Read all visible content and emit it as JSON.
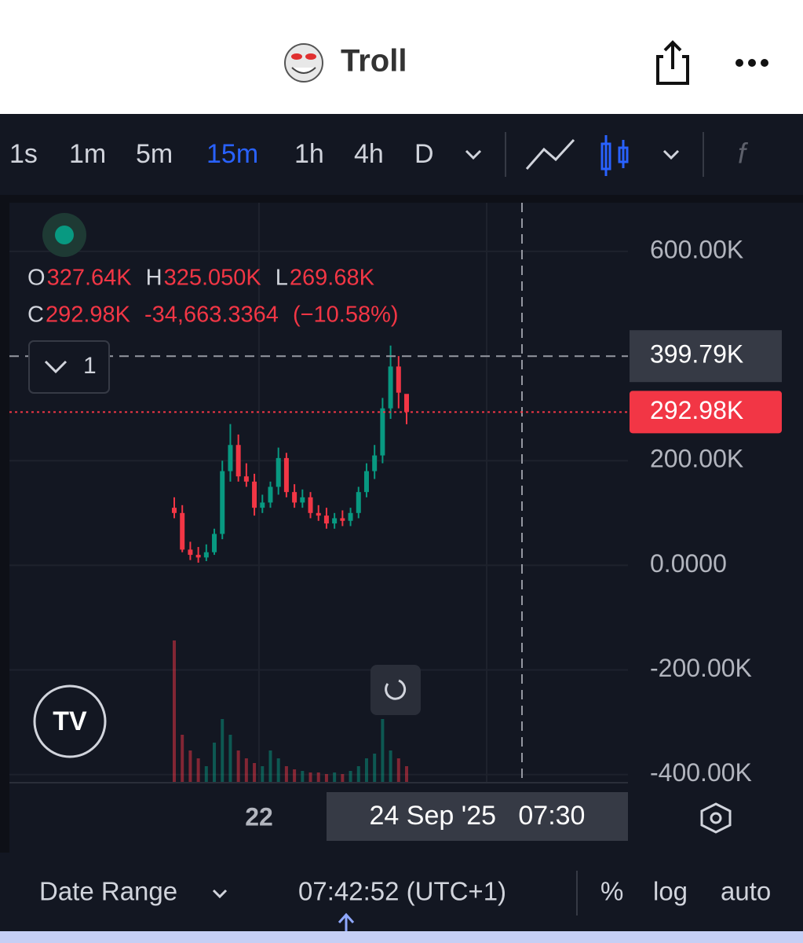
{
  "header": {
    "title": "Troll"
  },
  "toolbar": {
    "intervals": [
      "1s",
      "1m",
      "5m",
      "15m",
      "1h",
      "4h",
      "D"
    ],
    "active": 3
  },
  "chart_data": {
    "type": "candlestick",
    "ylim": [
      -414000,
      693000
    ],
    "yticks": [
      {
        "value": 600000,
        "label": "600.00K"
      },
      {
        "value": 200000,
        "label": "200.00K"
      },
      {
        "value": 0,
        "label": "0.0000"
      },
      {
        "value": -200000,
        "label": "-200.00K"
      },
      {
        "value": -400000,
        "label": "-400.00K"
      }
    ],
    "open": [
      110000,
      100000,
      30000,
      20000,
      15000,
      25000,
      60000,
      180000,
      230000,
      170000,
      160000,
      110000,
      120000,
      150000,
      205000,
      140000,
      120000,
      130000,
      100000,
      95000,
      80000,
      90000,
      85000,
      100000,
      140000,
      180000,
      210000,
      300000,
      380000,
      327640
    ],
    "high": [
      130000,
      115000,
      45000,
      35000,
      40000,
      70000,
      200000,
      270000,
      250000,
      195000,
      175000,
      135000,
      160000,
      225000,
      215000,
      155000,
      145000,
      140000,
      115000,
      110000,
      100000,
      105000,
      110000,
      150000,
      195000,
      230000,
      320000,
      420000,
      400000,
      325050
    ],
    "low": [
      90000,
      25000,
      10000,
      5000,
      8000,
      20000,
      50000,
      160000,
      160000,
      150000,
      95000,
      100000,
      110000,
      135000,
      130000,
      110000,
      110000,
      90000,
      85000,
      70000,
      70000,
      75000,
      75000,
      90000,
      130000,
      165000,
      195000,
      280000,
      300000,
      269680
    ],
    "close": [
      100000,
      30000,
      20000,
      15000,
      25000,
      60000,
      180000,
      230000,
      170000,
      160000,
      110000,
      120000,
      150000,
      205000,
      140000,
      120000,
      130000,
      100000,
      95000,
      80000,
      90000,
      85000,
      100000,
      140000,
      180000,
      210000,
      300000,
      380000,
      330000,
      292980
    ],
    "volume": [
      900,
      300,
      200,
      150,
      100,
      250,
      400,
      300,
      200,
      150,
      120,
      100,
      200,
      150,
      100,
      80,
      70,
      60,
      60,
      50,
      60,
      50,
      70,
      100,
      150,
      180,
      400,
      200,
      150,
      100
    ],
    "up_color": "#089981",
    "down_color": "#f23645",
    "grid": true,
    "ohlc": {
      "o": {
        "name": "O",
        "value": 327640,
        "label": "327.64K"
      },
      "h": {
        "name": "H",
        "value": 325050,
        "label": "325.050K"
      },
      "l": {
        "name": "L",
        "value": 269680,
        "label": "269.68K"
      },
      "c": {
        "name": "C",
        "value": 292980,
        "label": "292.98K"
      },
      "change": {
        "value": -34663.3364,
        "label": "-34,663.3364"
      },
      "change_pct": {
        "value": -10.58,
        "label": "(−10.58%)"
      }
    },
    "crosshair": {
      "value": 399790,
      "label": "399.79K",
      "time": "24 Sep '25   07:30"
    },
    "last_price": {
      "value": 292980,
      "label": "292.98K"
    },
    "x_label": "22",
    "indicator_count": "1"
  },
  "footer": {
    "date_range": "Date Range",
    "clock": "07:42:52 (UTC+1)",
    "percent": "%",
    "log": "log",
    "auto": "auto"
  }
}
